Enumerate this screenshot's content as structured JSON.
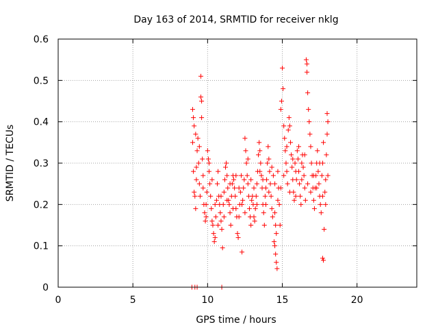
{
  "chart_data": {
    "type": "scatter",
    "title": "Day 163 of 2014, SRMTID for receiver nklg",
    "xlabel": "GPS time / hours",
    "ylabel": "SRMTID / TECUs",
    "xlim": [
      0,
      24
    ],
    "ylim": [
      0,
      0.6
    ],
    "xticks": [
      0,
      5,
      10,
      15,
      20
    ],
    "xtick_labels": [
      "0",
      "5",
      "10",
      "15",
      "20"
    ],
    "yticks": [
      0,
      0.1,
      0.2,
      0.3,
      0.4,
      0.5,
      0.6
    ],
    "ytick_labels": [
      "0",
      "0.1",
      "0.2",
      "0.3",
      "0.4",
      "0.5",
      "0.6"
    ],
    "grid": true,
    "marker": "+",
    "series": [
      {
        "name": "SRMTID",
        "color": "#ff0000",
        "points": [
          [
            8.95,
            0.0
          ],
          [
            9.15,
            0.0
          ],
          [
            9.3,
            0.0
          ],
          [
            10.95,
            0.0
          ],
          [
            9.0,
            0.43
          ],
          [
            9.05,
            0.41
          ],
          [
            9.1,
            0.39
          ],
          [
            9.0,
            0.35
          ],
          [
            9.2,
            0.37
          ],
          [
            9.3,
            0.33
          ],
          [
            9.05,
            0.28
          ],
          [
            9.1,
            0.23
          ],
          [
            9.15,
            0.22
          ],
          [
            9.2,
            0.19
          ],
          [
            9.25,
            0.26
          ],
          [
            9.35,
            0.36
          ],
          [
            9.4,
            0.3
          ],
          [
            9.45,
            0.25
          ],
          [
            9.5,
            0.22
          ],
          [
            9.55,
            0.51
          ],
          [
            9.55,
            0.46
          ],
          [
            9.6,
            0.45
          ],
          [
            9.6,
            0.41
          ],
          [
            9.65,
            0.31
          ],
          [
            9.7,
            0.27
          ],
          [
            9.75,
            0.2
          ],
          [
            9.8,
            0.18
          ],
          [
            9.85,
            0.16
          ],
          [
            9.9,
            0.17
          ],
          [
            9.95,
            0.23
          ],
          [
            10.0,
            0.33
          ],
          [
            10.05,
            0.31
          ],
          [
            10.1,
            0.28
          ],
          [
            10.15,
            0.25
          ],
          [
            10.2,
            0.22
          ],
          [
            10.25,
            0.19
          ],
          [
            10.3,
            0.16
          ],
          [
            10.35,
            0.15
          ],
          [
            10.4,
            0.13
          ],
          [
            10.45,
            0.11
          ],
          [
            10.5,
            0.12
          ],
          [
            10.55,
            0.17
          ],
          [
            10.6,
            0.21
          ],
          [
            10.65,
            0.25
          ],
          [
            10.7,
            0.28
          ],
          [
            10.75,
            0.22
          ],
          [
            10.8,
            0.2
          ],
          [
            10.85,
            0.18
          ],
          [
            10.9,
            0.16
          ],
          [
            10.95,
            0.14
          ],
          [
            11.0,
            0.095
          ],
          [
            11.05,
            0.2
          ],
          [
            11.1,
            0.23
          ],
          [
            11.15,
            0.26
          ],
          [
            11.2,
            0.29
          ],
          [
            11.25,
            0.3
          ],
          [
            11.3,
            0.27
          ],
          [
            11.35,
            0.24
          ],
          [
            11.4,
            0.21
          ],
          [
            11.45,
            0.2
          ],
          [
            11.5,
            0.18
          ],
          [
            11.55,
            0.15
          ],
          [
            11.6,
            0.22
          ],
          [
            11.65,
            0.25
          ],
          [
            11.7,
            0.27
          ],
          [
            11.75,
            0.26
          ],
          [
            11.8,
            0.24
          ],
          [
            11.85,
            0.22
          ],
          [
            11.9,
            0.19
          ],
          [
            11.95,
            0.17
          ],
          [
            12.0,
            0.13
          ],
          [
            12.05,
            0.12
          ],
          [
            12.1,
            0.17
          ],
          [
            12.15,
            0.2
          ],
          [
            12.2,
            0.23
          ],
          [
            12.25,
            0.27
          ],
          [
            12.3,
            0.085
          ],
          [
            12.35,
            0.21
          ],
          [
            12.4,
            0.24
          ],
          [
            12.45,
            0.26
          ],
          [
            12.5,
            0.36
          ],
          [
            12.55,
            0.33
          ],
          [
            12.6,
            0.3
          ],
          [
            12.65,
            0.27
          ],
          [
            12.7,
            0.25
          ],
          [
            12.75,
            0.22
          ],
          [
            12.8,
            0.19
          ],
          [
            12.85,
            0.17
          ],
          [
            12.9,
            0.15
          ],
          [
            12.95,
            0.21
          ],
          [
            13.0,
            0.22
          ],
          [
            13.05,
            0.2
          ],
          [
            13.1,
            0.17
          ],
          [
            13.15,
            0.16
          ],
          [
            13.2,
            0.19
          ],
          [
            13.25,
            0.22
          ],
          [
            13.3,
            0.25
          ],
          [
            13.35,
            0.28
          ],
          [
            13.4,
            0.32
          ],
          [
            13.45,
            0.35
          ],
          [
            13.5,
            0.33
          ],
          [
            13.55,
            0.3
          ],
          [
            13.6,
            0.27
          ],
          [
            13.65,
            0.24
          ],
          [
            13.7,
            0.2
          ],
          [
            13.75,
            0.18
          ],
          [
            13.8,
            0.15
          ],
          [
            13.85,
            0.22
          ],
          [
            13.9,
            0.24
          ],
          [
            13.95,
            0.26
          ],
          [
            14.0,
            0.3
          ],
          [
            14.05,
            0.34
          ],
          [
            14.1,
            0.31
          ],
          [
            14.15,
            0.28
          ],
          [
            14.2,
            0.25
          ],
          [
            14.25,
            0.22
          ],
          [
            14.3,
            0.19
          ],
          [
            14.35,
            0.17
          ],
          [
            14.4,
            0.27
          ],
          [
            14.45,
            0.11
          ],
          [
            14.5,
            0.1
          ],
          [
            14.55,
            0.08
          ],
          [
            14.6,
            0.06
          ],
          [
            14.65,
            0.045
          ],
          [
            14.5,
            0.18
          ],
          [
            14.55,
            0.15
          ],
          [
            14.6,
            0.13
          ],
          [
            14.7,
            0.21
          ],
          [
            14.75,
            0.24
          ],
          [
            14.8,
            0.2
          ],
          [
            14.85,
            0.15
          ],
          [
            14.9,
            0.43
          ],
          [
            14.95,
            0.45
          ],
          [
            15.0,
            0.53
          ],
          [
            15.05,
            0.48
          ],
          [
            15.1,
            0.39
          ],
          [
            15.15,
            0.36
          ],
          [
            15.2,
            0.33
          ],
          [
            15.25,
            0.3
          ],
          [
            15.3,
            0.28
          ],
          [
            15.35,
            0.25
          ],
          [
            15.4,
            0.38
          ],
          [
            15.45,
            0.41
          ],
          [
            15.5,
            0.39
          ],
          [
            15.55,
            0.35
          ],
          [
            15.6,
            0.32
          ],
          [
            15.65,
            0.29
          ],
          [
            15.7,
            0.26
          ],
          [
            15.75,
            0.23
          ],
          [
            15.8,
            0.21
          ],
          [
            15.85,
            0.3
          ],
          [
            15.9,
            0.28
          ],
          [
            15.95,
            0.26
          ],
          [
            16.0,
            0.33
          ],
          [
            16.05,
            0.31
          ],
          [
            16.1,
            0.28
          ],
          [
            16.15,
            0.25
          ],
          [
            16.2,
            0.22
          ],
          [
            16.25,
            0.2
          ],
          [
            16.3,
            0.3
          ],
          [
            16.35,
            0.32
          ],
          [
            16.4,
            0.29
          ],
          [
            16.45,
            0.27
          ],
          [
            16.5,
            0.24
          ],
          [
            16.55,
            0.21
          ],
          [
            16.6,
            0.55
          ],
          [
            16.65,
            0.54
          ],
          [
            16.65,
            0.52
          ],
          [
            16.7,
            0.47
          ],
          [
            16.75,
            0.43
          ],
          [
            16.8,
            0.4
          ],
          [
            16.85,
            0.37
          ],
          [
            16.9,
            0.34
          ],
          [
            16.95,
            0.3
          ],
          [
            17.0,
            0.27
          ],
          [
            17.05,
            0.24
          ],
          [
            17.1,
            0.21
          ],
          [
            17.15,
            0.19
          ],
          [
            17.2,
            0.24
          ],
          [
            17.25,
            0.27
          ],
          [
            17.3,
            0.3
          ],
          [
            17.35,
            0.33
          ],
          [
            17.4,
            0.28
          ],
          [
            17.45,
            0.25
          ],
          [
            17.5,
            0.22
          ],
          [
            17.55,
            0.2
          ],
          [
            17.6,
            0.18
          ],
          [
            17.65,
            0.27
          ],
          [
            17.7,
            0.3
          ],
          [
            17.75,
            0.35
          ],
          [
            17.7,
            0.07
          ],
          [
            17.75,
            0.065
          ],
          [
            17.8,
            0.14
          ],
          [
            17.85,
            0.23
          ],
          [
            17.9,
            0.26
          ],
          [
            17.95,
            0.32
          ],
          [
            18.0,
            0.37
          ],
          [
            18.0,
            0.42
          ],
          [
            18.05,
            0.4
          ],
          [
            18.05,
            0.27
          ],
          [
            9.25,
            0.29
          ],
          [
            9.45,
            0.34
          ],
          [
            9.7,
            0.24
          ],
          [
            9.9,
            0.2
          ],
          [
            10.1,
            0.3
          ],
          [
            10.3,
            0.26
          ],
          [
            10.5,
            0.2
          ],
          [
            10.7,
            0.15
          ],
          [
            10.9,
            0.22
          ],
          [
            11.1,
            0.17
          ],
          [
            11.3,
            0.21
          ],
          [
            11.5,
            0.25
          ],
          [
            11.7,
            0.19
          ],
          [
            11.9,
            0.27
          ],
          [
            12.1,
            0.24
          ],
          [
            12.3,
            0.2
          ],
          [
            12.5,
            0.18
          ],
          [
            12.7,
            0.31
          ],
          [
            12.9,
            0.26
          ],
          [
            13.1,
            0.24
          ],
          [
            13.3,
            0.2
          ],
          [
            13.5,
            0.28
          ],
          [
            13.7,
            0.26
          ],
          [
            13.9,
            0.2
          ],
          [
            14.1,
            0.23
          ],
          [
            14.3,
            0.29
          ],
          [
            14.5,
            0.25
          ],
          [
            14.7,
            0.28
          ],
          [
            14.9,
            0.24
          ],
          [
            15.1,
            0.27
          ],
          [
            15.3,
            0.34
          ],
          [
            15.5,
            0.23
          ],
          [
            15.7,
            0.31
          ],
          [
            15.9,
            0.22
          ],
          [
            16.1,
            0.34
          ],
          [
            16.3,
            0.26
          ],
          [
            16.5,
            0.32
          ],
          [
            16.7,
            0.25
          ],
          [
            16.9,
            0.23
          ],
          [
            17.1,
            0.27
          ],
          [
            17.3,
            0.24
          ],
          [
            17.5,
            0.3
          ],
          [
            17.7,
            0.22
          ],
          [
            17.9,
            0.2
          ]
        ]
      }
    ]
  }
}
